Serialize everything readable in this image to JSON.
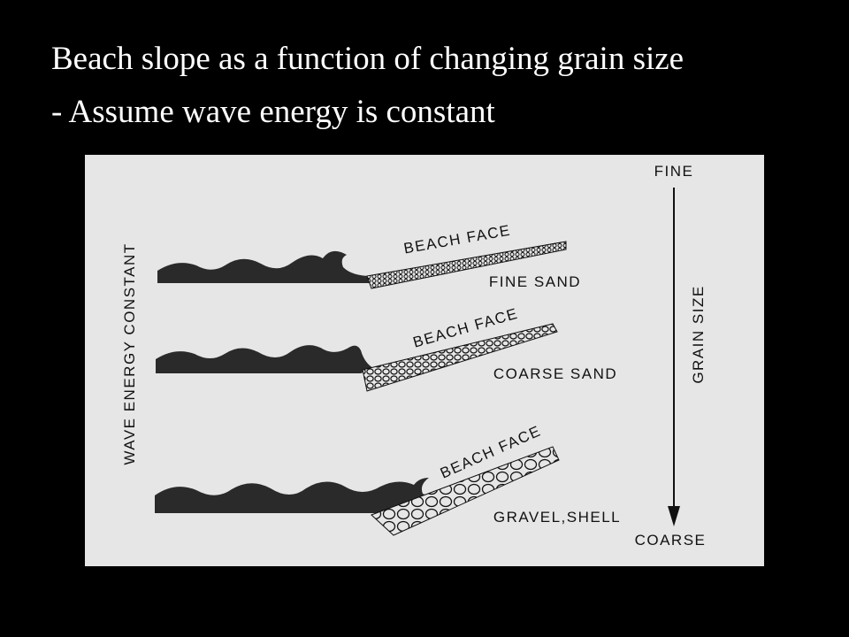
{
  "header": {
    "title": "Beach slope as a function of changing grain size",
    "subtitle": "- Assume wave energy is constant"
  },
  "diagram": {
    "left_label": "WAVE ENERGY CONSTANT",
    "right_axis": {
      "top": "FINE",
      "label": "GRAIN SIZE",
      "bottom": "COARSE"
    },
    "profiles": [
      {
        "face": "BEACH FACE",
        "sediment": "FINE SAND"
      },
      {
        "face": "BEACH FACE",
        "sediment": "COARSE SAND"
      },
      {
        "face": "BEACH FACE",
        "sediment": "GRAVEL,SHELL"
      }
    ]
  }
}
